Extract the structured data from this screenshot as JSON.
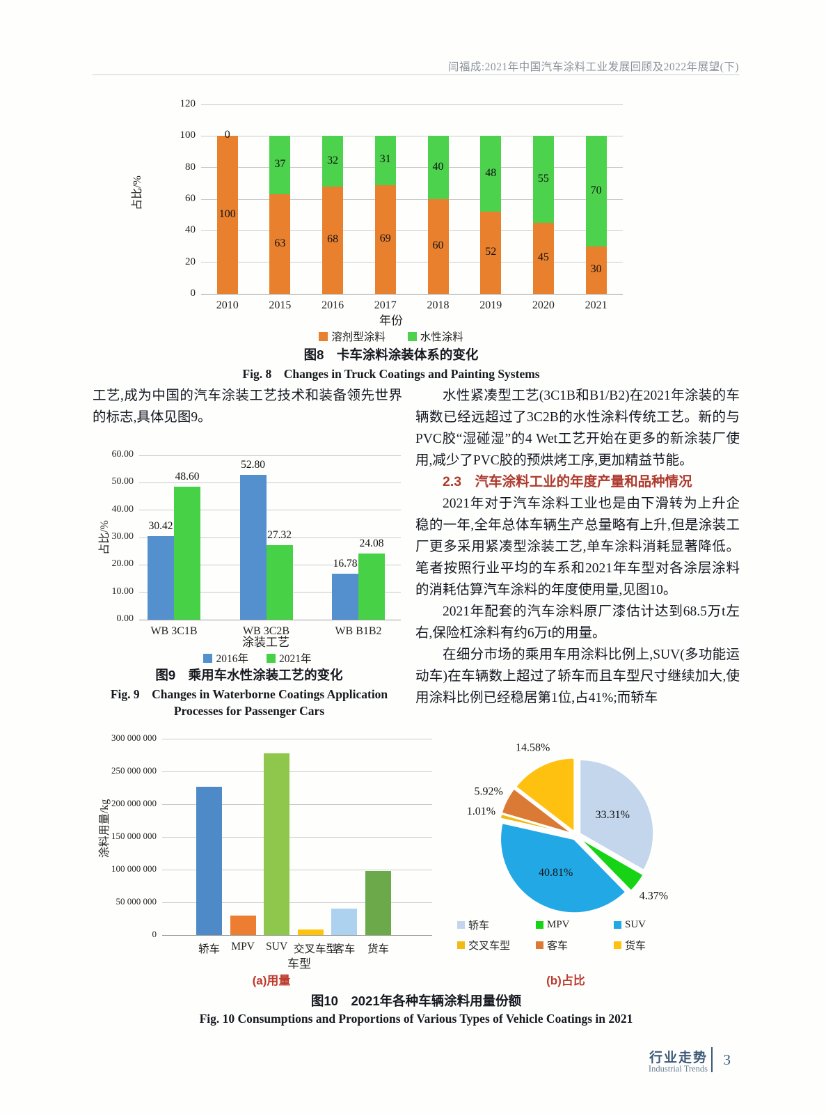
{
  "page": {
    "running_title": "闫福成:2021年中国汽车涂料工业发展回顾及2022年展望(下)",
    "footer": {
      "zh": "行业走势",
      "en": "Industrial Trends",
      "page_number": "3"
    }
  },
  "text": {
    "left_column": {
      "para1": "工艺,成为中国的汽车涂装工艺技术和装备领先世界的标志,具体见图9。"
    },
    "right_column": {
      "para1": "水性紧凑型工艺(3C1B和B1/B2)在2021年涂装的车辆数已经远超过了3C2B的水性涂料传统工艺。新的与PVC胶“湿碰湿”的4 Wet工艺开始在更多的新涂装厂使用,减少了PVC胶的预烘烤工序,更加精益节能。",
      "heading_2_3": "2.3　汽车涂料工业的年度产量和品种情况",
      "para2": "2021年对于汽车涂料工业也是由下滑转为上升企稳的一年,全年总体车辆生产总量略有上升,但是涂装工厂更多采用紧凑型涂装工艺,单车涂料消耗显著降低。笔者按照行业平均的车系和2021年车型对各涂层涂料的消耗估算汽车涂料的年度使用量,见图10。",
      "para3": "2021年配套的汽车涂料原厂漆估计达到68.5万t左右,保险杠涂料有约6万t的用量。",
      "para4": "在细分市场的乘用车用涂料比例上,SUV(多功能运动车)在车辆数上超过了轿车而且车型尺寸继续加大,使用涂料比例已经稳居第1位,占41%;而轿车"
    }
  },
  "figures": {
    "fig8": {
      "caption_zh": "图8　卡车涂料涂装体系的变化",
      "caption_en": "Fig. 8　Changes in Truck Coatings and Painting Systems"
    },
    "fig9": {
      "caption_zh": "图9　乘用车水性涂装工艺的变化",
      "caption_en_line1": "Fig. 9　Changes in Waterborne Coatings Application",
      "caption_en_line2": "Processes for Passenger Cars"
    },
    "fig10": {
      "sub_a": "(a)用量",
      "sub_b": "(b)占比",
      "caption_zh": "图10　2021年各种车辆涂料用量份额",
      "caption_en": "Fig. 10 Consumptions and Proportions of Various Types of Vehicle Coatings in 2021"
    }
  },
  "chart_data": [
    {
      "id": "fig8",
      "type": "bar",
      "stacked": true,
      "title": "卡车涂料涂装体系的变化",
      "categories": [
        "2010",
        "2015",
        "2016",
        "2017",
        "2018",
        "2019",
        "2020",
        "2021"
      ],
      "series": [
        {
          "name": "溶剂型涂料",
          "color": "#E8802E",
          "values": [
            100,
            63,
            68,
            69,
            60,
            52,
            45,
            30
          ]
        },
        {
          "name": "水性涂料",
          "color": "#4CD24C",
          "values": [
            0,
            37,
            32,
            31,
            40,
            48,
            55,
            70
          ]
        }
      ],
      "xlabel": "年份",
      "ylabel": "占比/%",
      "ylim": [
        0,
        120
      ],
      "ytick_step": 20,
      "grid": true,
      "legend_position": "bottom",
      "data_labels": true
    },
    {
      "id": "fig9",
      "type": "bar",
      "stacked": false,
      "title": "乘用车水性涂装工艺的变化",
      "categories": [
        "WB 3C1B",
        "WB 3C2B",
        "WB B1B2"
      ],
      "series": [
        {
          "name": "2016年",
          "color": "#5590CE",
          "values": [
            30.42,
            52.8,
            16.78
          ]
        },
        {
          "name": "2021年",
          "color": "#47D147",
          "values": [
            48.6,
            27.32,
            24.08
          ]
        }
      ],
      "xlabel": "涂装工艺",
      "ylabel": "占比/%",
      "ylim": [
        0,
        60
      ],
      "ytick_step": 10,
      "ytick_decimals": 2,
      "grid": true,
      "legend_position": "bottom",
      "data_labels": true
    },
    {
      "id": "fig10a",
      "type": "bar",
      "stacked": false,
      "title": "2021年各种车辆涂料用量",
      "categories": [
        "轿车",
        "MPV",
        "SUV",
        "交叉车型",
        "客车",
        "货车"
      ],
      "values": [
        227000000,
        30000000,
        278000000,
        8000000,
        40000000,
        98000000
      ],
      "colors": [
        "#4E89C8",
        "#ED7D31",
        "#8FC64C",
        "#FFC30B",
        "#ADD2EF",
        "#6BA94A"
      ],
      "xlabel": "车型",
      "ylabel": "涂料用量/kg",
      "ylim": [
        0,
        300000000
      ],
      "ytick_step": 50000000,
      "ytick_group_spaces": true,
      "grid": true,
      "data_labels": false
    },
    {
      "id": "fig10b",
      "type": "pie",
      "title": "2021年各种车辆涂料用量占比",
      "labels": [
        "轿车",
        "MPV",
        "SUV",
        "交叉车型",
        "客车",
        "货车"
      ],
      "values": [
        33.31,
        4.37,
        40.81,
        1.01,
        5.92,
        14.58
      ],
      "value_labels": [
        "33.31%",
        "4.37%",
        "40.81%",
        "1.01%",
        "5.92%",
        "14.58%"
      ],
      "colors": [
        "#C3D6EB",
        "#16D316",
        "#22A9E5",
        "#F2BA14",
        "#DB7A35",
        "#FFC110"
      ],
      "start_angle_deg": 0,
      "direction": "clockwise",
      "exploded": true,
      "legend_position": "bottom"
    }
  ]
}
